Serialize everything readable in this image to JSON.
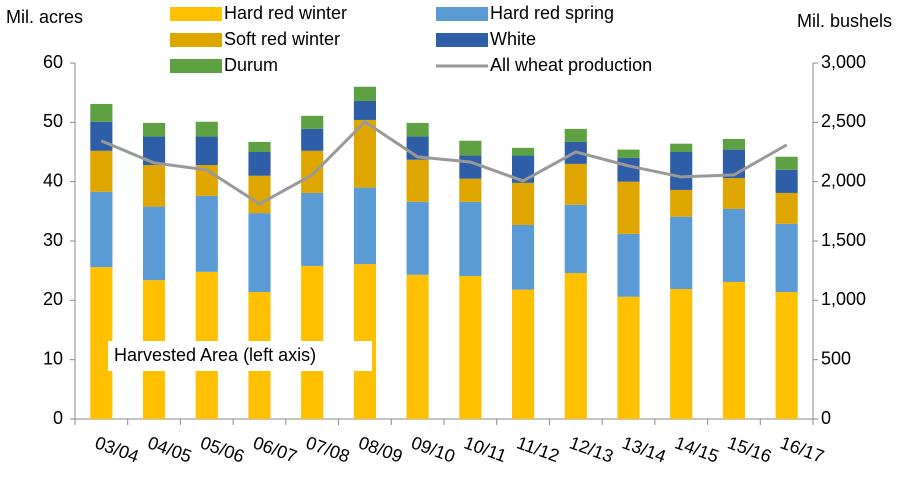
{
  "chart_data": {
    "type": "bar",
    "stacked": true,
    "y_label": "Mil. acres",
    "y2_label": "Mil. bushels",
    "annotation": "Harvested Area (left axis)",
    "categories": [
      "03/04",
      "04/05",
      "05/06",
      "06/07",
      "07/08",
      "08/09",
      "09/10",
      "10/11",
      "11/12",
      "12/13",
      "13/14",
      "14/15",
      "15/16",
      "16/17"
    ],
    "series": [
      {
        "name": "Hard red winter",
        "color": "#ffc000",
        "type": "bar",
        "values": [
          25.6,
          23.4,
          24.8,
          21.4,
          25.8,
          26.1,
          24.3,
          24.1,
          21.8,
          24.6,
          20.6,
          21.9,
          23.1,
          21.4
        ]
      },
      {
        "name": "Hard red spring",
        "color": "#5b9bd5",
        "type": "bar",
        "values": [
          12.7,
          12.4,
          12.8,
          13.3,
          12.3,
          12.9,
          12.3,
          12.5,
          10.9,
          11.5,
          10.6,
          12.2,
          12.3,
          11.5
        ]
      },
      {
        "name": "Soft red winter",
        "color": "#dfa600",
        "type": "bar",
        "values": [
          6.9,
          7.0,
          5.2,
          6.3,
          7.1,
          11.4,
          7.1,
          3.9,
          7.1,
          6.9,
          8.8,
          4.5,
          5.2,
          5.2
        ]
      },
      {
        "name": "White",
        "color": "#2f5ea8",
        "type": "bar",
        "values": [
          4.9,
          4.8,
          4.8,
          4.0,
          3.7,
          3.2,
          3.9,
          3.9,
          4.6,
          3.7,
          4.0,
          6.4,
          4.8,
          3.9
        ]
      },
      {
        "name": "Durum",
        "color": "#5ea142",
        "type": "bar",
        "values": [
          3.0,
          2.3,
          2.5,
          1.7,
          2.2,
          2.4,
          2.3,
          2.5,
          1.3,
          2.2,
          1.4,
          1.4,
          1.8,
          2.2
        ]
      },
      {
        "name": "All wheat production",
        "color": "#999999",
        "type": "line",
        "axis": "y2",
        "values": [
          2344,
          2158,
          2099,
          1812,
          2057,
          2504,
          2209,
          2166,
          2006,
          2251,
          2133,
          2040,
          2057,
          2310
        ]
      }
    ],
    "ylim": [
      0,
      60
    ],
    "yticks": [
      0,
      10,
      20,
      30,
      40,
      50,
      60
    ],
    "y2lim": [
      0,
      3000
    ],
    "y2ticks": [
      0,
      500,
      {
        "value": 1000,
        "label": "1,000"
      },
      {
        "value": 1500,
        "label": "1,500"
      },
      {
        "value": 2000,
        "label": "2,000"
      },
      {
        "value": 2500,
        "label": "2,500"
      },
      {
        "value": 3000,
        "label": "3,000"
      }
    ],
    "grid": false
  }
}
